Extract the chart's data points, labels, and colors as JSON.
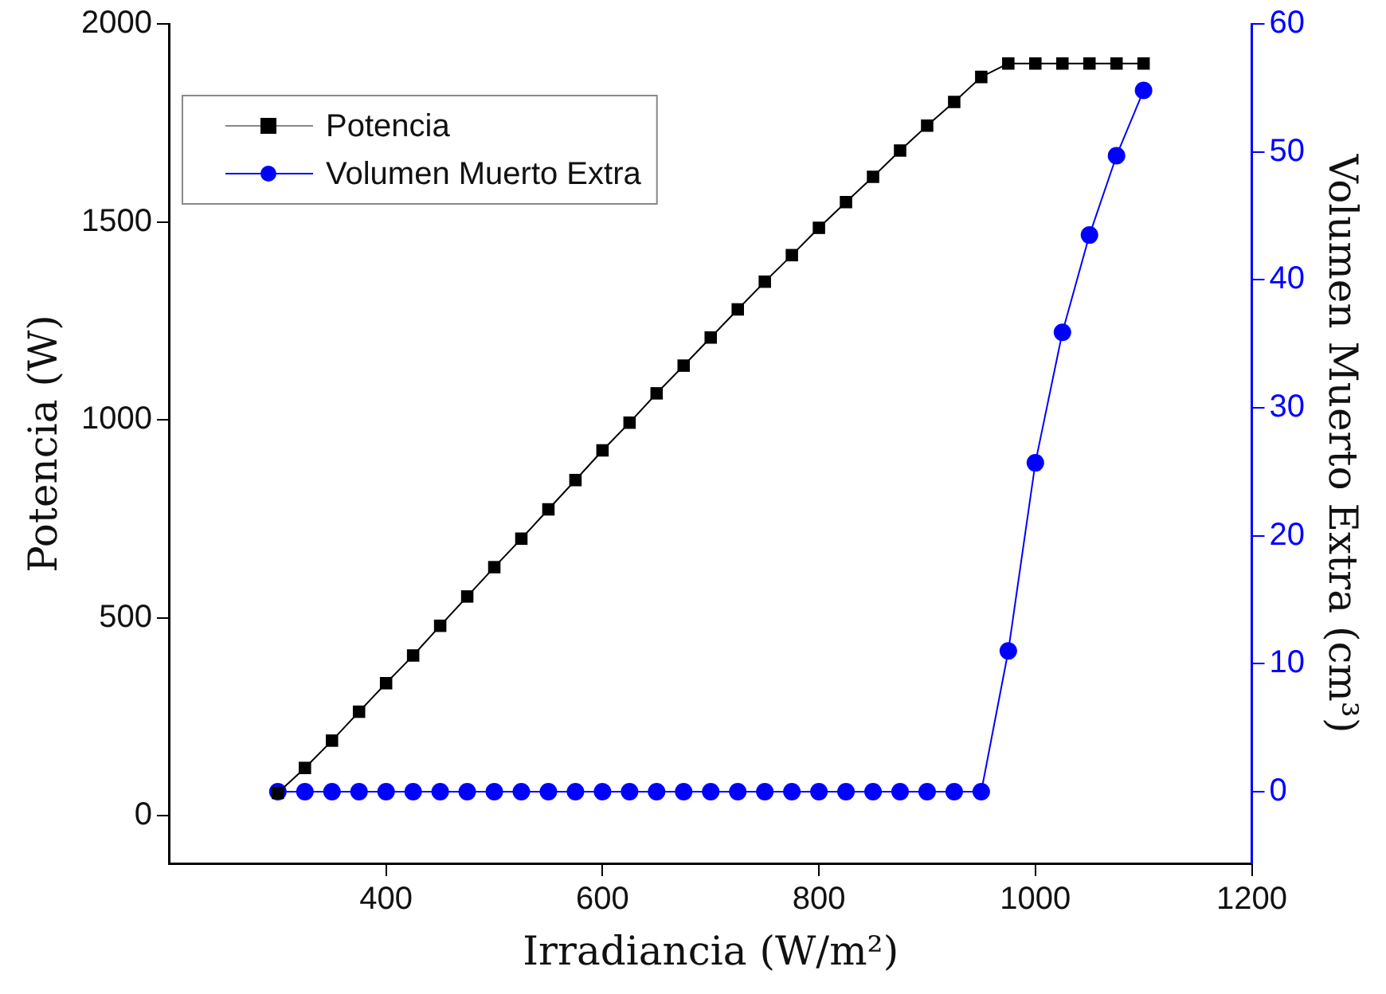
{
  "chart_data": {
    "type": "line",
    "xlabel": "Irradiancia (W/m²)",
    "ylabel": "Potencia (W)",
    "y2label": "Volumen Muerto Extra (cm³)",
    "x": [
      300,
      325,
      350,
      375,
      400,
      425,
      450,
      475,
      500,
      525,
      550,
      575,
      600,
      625,
      650,
      675,
      700,
      725,
      750,
      775,
      800,
      825,
      850,
      875,
      900,
      925,
      950,
      975,
      1000,
      1025,
      1050,
      1075,
      1100
    ],
    "series": [
      {
        "name": "Potencia",
        "color": "#000000",
        "marker": "square",
        "values": [
          58,
          121,
          190,
          263,
          335,
          405,
          480,
          554,
          628,
          700,
          774,
          848,
          923,
          993,
          1067,
          1137,
          1208,
          1279,
          1349,
          1416,
          1485,
          1550,
          1614,
          1680,
          1743,
          1803,
          1866,
          1900,
          1900,
          1900,
          1900,
          1900,
          1900
        ]
      },
      {
        "name": "Volumen Muerto Extra",
        "color": "#0000ff",
        "marker": "circle",
        "axis": "y2",
        "values": [
          0,
          0,
          0,
          0,
          0,
          0,
          0,
          0,
          0,
          0,
          0,
          0,
          0,
          0,
          0,
          0,
          0,
          0,
          0,
          0,
          0,
          0,
          0,
          0,
          0,
          0,
          0,
          11.0,
          25.7,
          35.9,
          43.5,
          49.7,
          54.8
        ]
      }
    ],
    "xlim": [
      200,
      1200
    ],
    "xticks": [
      400,
      600,
      800,
      1000,
      1200
    ],
    "ylim": [
      -120,
      2000
    ],
    "yticks": [
      0,
      500,
      1000,
      1500,
      2000
    ],
    "y2lim": [
      -5.6,
      60
    ],
    "y2ticks": [
      0,
      10,
      20,
      30,
      40,
      50,
      60
    ],
    "grid": false,
    "legend": "top left",
    "line_style": "solid"
  }
}
